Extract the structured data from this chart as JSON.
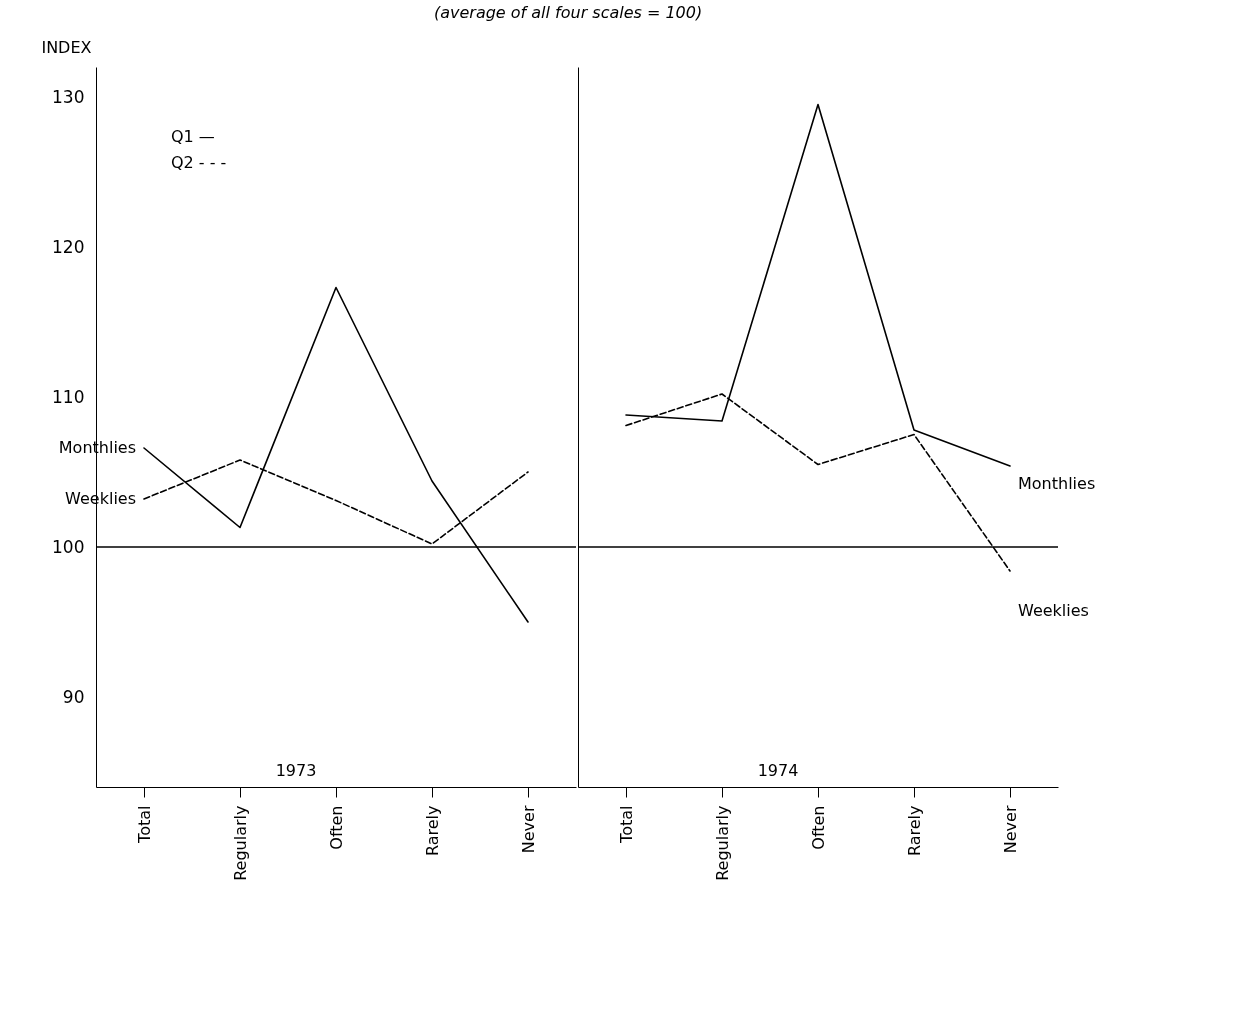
{
  "chart_data": [
    {
      "type": "line",
      "title": "(average of all four scales = 100)",
      "ylabel": "INDEX",
      "xlabel": "1973",
      "categories": [
        "Total",
        "Regularly",
        "Often",
        "Rarely",
        "Never"
      ],
      "series": [
        {
          "name": "Monthlies",
          "color": "#000000",
          "line_style": "solid",
          "values": [
            106.6,
            101.3,
            117.3,
            104.4,
            95.0
          ]
        },
        {
          "name": "Weeklies",
          "color": "#000000",
          "line_style": "dashed",
          "values": [
            103.2,
            105.8,
            103.1,
            100.2,
            105.0
          ]
        }
      ],
      "ylim": [
        84,
        132
      ],
      "yticks": [
        90,
        100,
        110,
        120,
        130
      ],
      "ref_lines": [
        {
          "axis": "y",
          "value": 100,
          "color": "#000000"
        }
      ],
      "annotations": [
        "Q1 —",
        "Q2 - - -"
      ],
      "grid": false,
      "legend": false
    },
    {
      "type": "line",
      "xlabel": "1974",
      "categories": [
        "Total",
        "Regularly",
        "Often",
        "Rarely",
        "Never"
      ],
      "series": [
        {
          "name": "Monthlies",
          "color": "#000000",
          "line_style": "solid",
          "values": [
            108.8,
            108.4,
            129.5,
            107.8,
            105.4
          ]
        },
        {
          "name": "Weeklies",
          "color": "#000000",
          "line_style": "dashed",
          "values": [
            108.1,
            110.2,
            105.5,
            107.5,
            98.4
          ]
        }
      ],
      "ylim": [
        84,
        132
      ],
      "yticks": [
        90,
        100,
        110,
        120,
        130
      ],
      "ref_lines": [
        {
          "axis": "y",
          "value": 100,
          "color": "#000000"
        }
      ],
      "tick_labels": "x",
      "grid": false,
      "legend": false
    }
  ]
}
